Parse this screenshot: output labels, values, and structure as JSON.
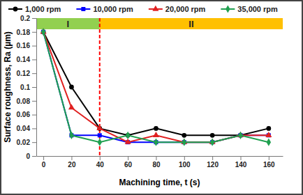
{
  "chart_data": {
    "type": "line",
    "x_label": "Machining time, t (s)",
    "y_label": "Surface roughness, Ra (µm)",
    "x": [
      0,
      20,
      40,
      60,
      80,
      100,
      120,
      140,
      160
    ],
    "series": [
      {
        "name": "1,000 rpm",
        "color": "#000000",
        "marker": "circle",
        "values": [
          0.18,
          0.1,
          0.04,
          0.03,
          0.04,
          0.03,
          0.03,
          0.03,
          0.04
        ]
      },
      {
        "name": "10,000 rpm",
        "color": "#0000ff",
        "marker": "square",
        "values": [
          0.18,
          0.03,
          0.03,
          0.02,
          0.02,
          0.02,
          0.02,
          0.03,
          0.03
        ]
      },
      {
        "name": "20,000 rpm",
        "color": "#e02020",
        "marker": "triangle",
        "values": [
          0.18,
          0.07,
          0.04,
          0.02,
          0.03,
          0.02,
          0.02,
          0.03,
          0.03
        ]
      },
      {
        "name": "35,000 rpm",
        "color": "#20a050",
        "marker": "diamond",
        "values": [
          0.18,
          0.03,
          0.02,
          0.03,
          0.02,
          0.02,
          0.02,
          0.03,
          0.02
        ]
      }
    ],
    "xlim": [
      -5,
      170
    ],
    "xticks": [
      0,
      20,
      40,
      60,
      80,
      100,
      120,
      140,
      160
    ],
    "ylim": [
      0,
      0.2
    ],
    "yticks": [
      0,
      0.02,
      0.04,
      0.06,
      0.08,
      0.1,
      0.12,
      0.14,
      0.16,
      0.18,
      0.2
    ],
    "grid": false,
    "legend": "top",
    "regions": [
      {
        "label": "I",
        "x": [
          -5,
          40
        ],
        "color": "#92d050"
      },
      {
        "label": "II",
        "x": [
          40,
          170
        ],
        "color": "#ffc000"
      }
    ],
    "vline": {
      "x": 40,
      "color": "#ff0000",
      "line_style": "dashed"
    }
  }
}
